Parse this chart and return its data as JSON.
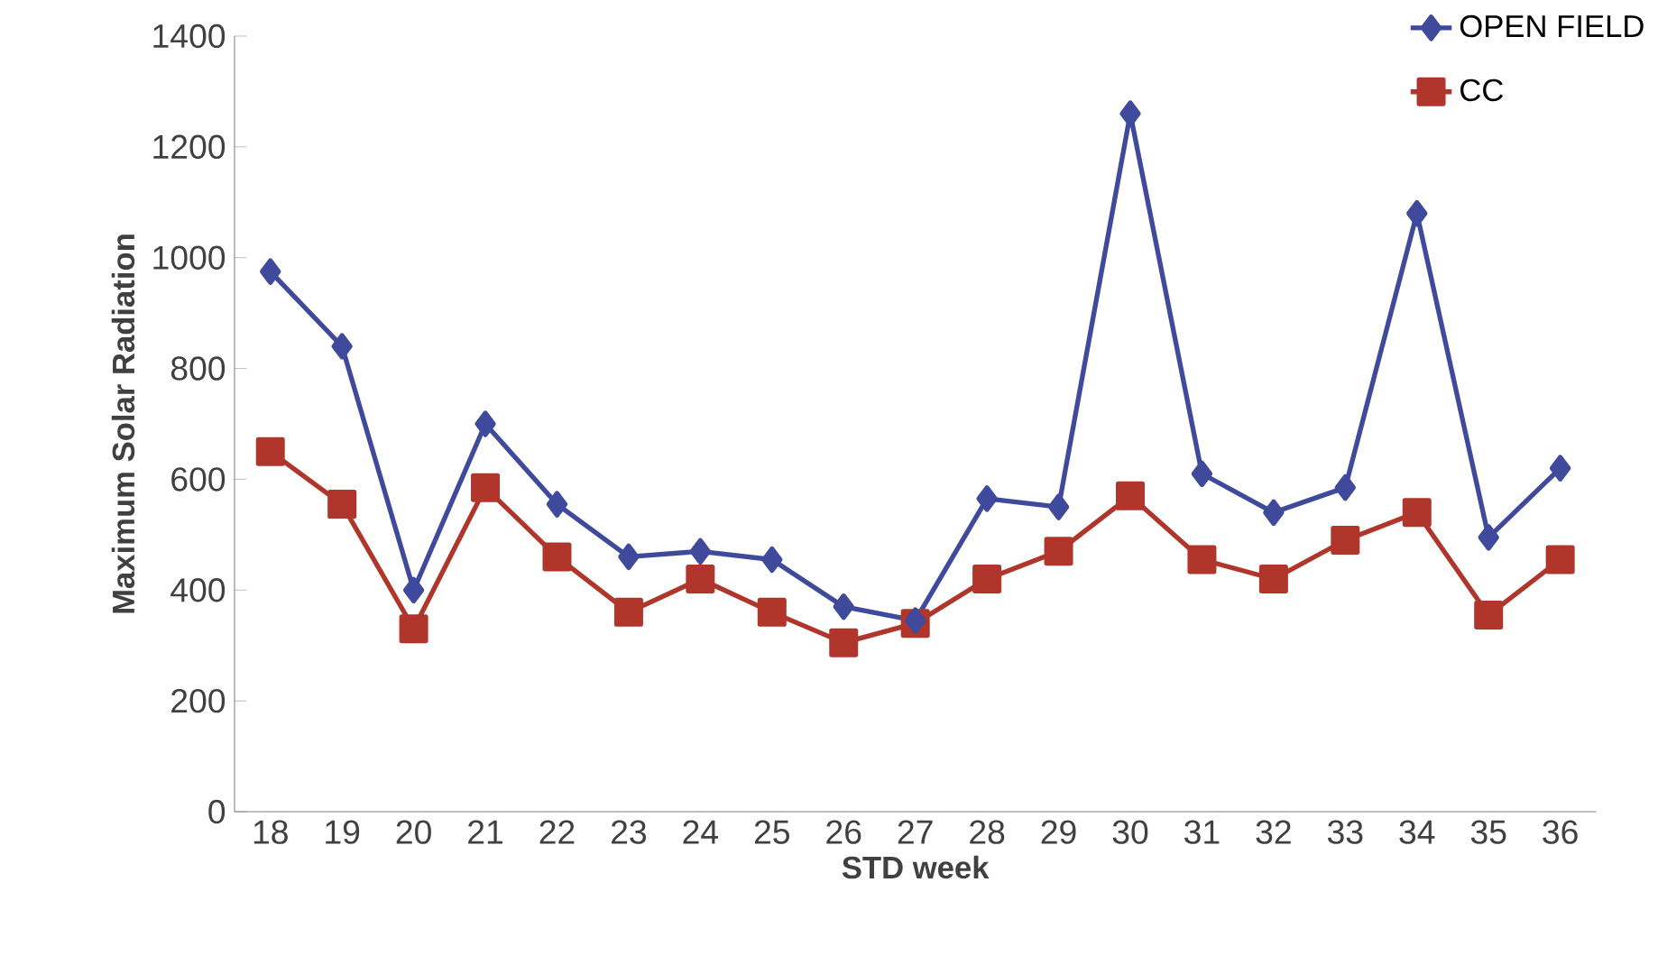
{
  "chart_data": {
    "type": "line",
    "xlabel": "STD week",
    "ylabel": "Maximum Solar Radiation",
    "categories": [
      "18",
      "19",
      "20",
      "21",
      "22",
      "23",
      "24",
      "25",
      "26",
      "27",
      "28",
      "29",
      "30",
      "31",
      "32",
      "33",
      "34",
      "35",
      "36"
    ],
    "series": [
      {
        "name": "OPEN FIELD",
        "color": "#3f4a9c",
        "marker": "diamond",
        "values": [
          975,
          840,
          400,
          700,
          555,
          460,
          470,
          455,
          370,
          345,
          565,
          550,
          1260,
          610,
          540,
          585,
          1080,
          495,
          620
        ]
      },
      {
        "name": "CC",
        "color": "#b0352b",
        "marker": "square",
        "values": [
          650,
          555,
          330,
          585,
          460,
          360,
          420,
          360,
          305,
          340,
          420,
          470,
          570,
          455,
          420,
          490,
          540,
          355,
          455
        ]
      }
    ],
    "ylim": [
      0,
      1400
    ],
    "yticks": [
      0,
      200,
      400,
      600,
      800,
      1000,
      1200,
      1400
    ],
    "grid": false,
    "legend": "top right",
    "line_style": "solid"
  }
}
